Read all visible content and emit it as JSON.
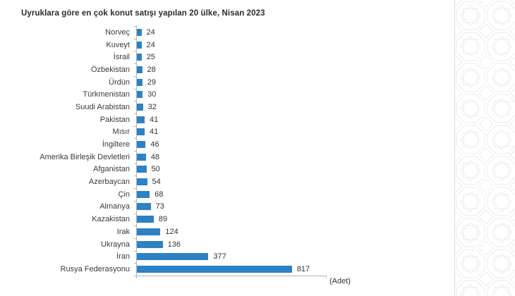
{
  "chart_data": {
    "type": "bar",
    "orientation": "horizontal",
    "title": "Uyruklara göre en çok konut satışı yapılan 20 ülke, Nisan 2023",
    "unit_label": "(Adet)",
    "categories": [
      "Norveç",
      "Kuveyt",
      "İsrail",
      "Özbekistan",
      "Ürdün",
      "Türkmenistan",
      "Suudi Arabistan",
      "Pakistan",
      "Mısır",
      "İngiltere",
      "Amerika Birleşik Devletleri",
      "Afganistan",
      "Azerbaycan",
      "Çin",
      "Almanya",
      "Kazakistan",
      "Irak",
      "Ukrayna",
      "İran",
      "Rusya Federasyonu"
    ],
    "values": [
      24,
      24,
      25,
      28,
      29,
      30,
      32,
      41,
      41,
      46,
      48,
      50,
      54,
      68,
      73,
      89,
      124,
      136,
      377,
      817
    ],
    "xlim": [
      0,
      1000
    ],
    "value_labels_shown": true,
    "grid": false,
    "legend": "none",
    "bar_color": "#2d82c3",
    "axis_color": "#b4b4b8",
    "text_color": "#333333"
  },
  "decor": {
    "pattern_name": "geometric-star-pattern"
  }
}
